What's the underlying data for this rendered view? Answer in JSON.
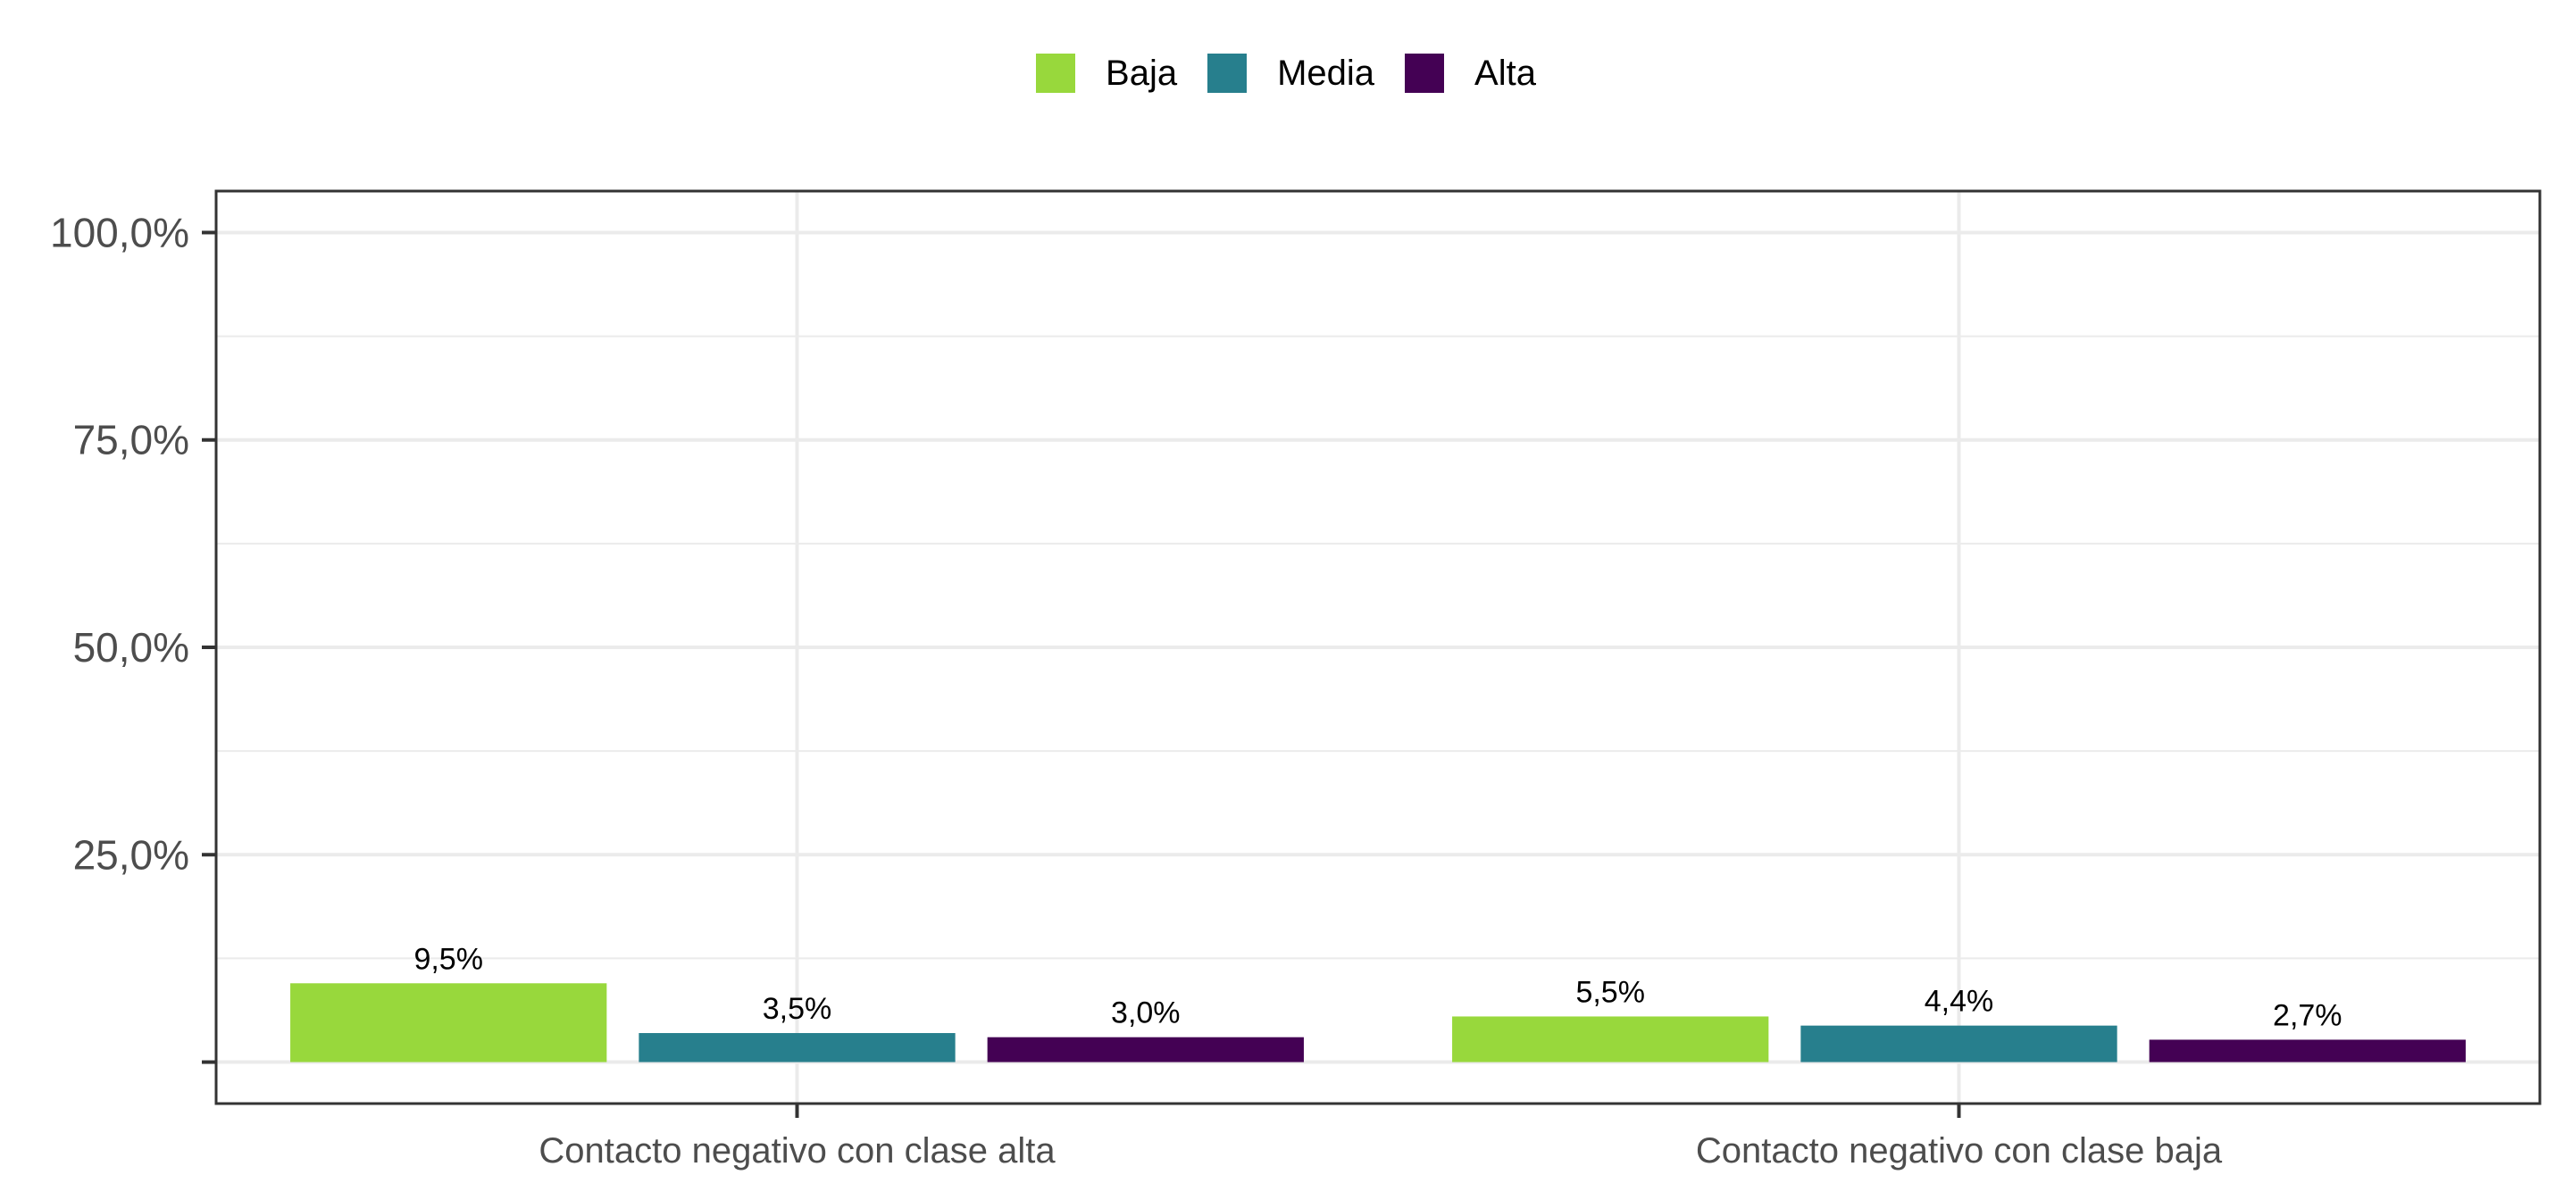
{
  "legend": {
    "position": "top",
    "items": [
      {
        "label": "Baja",
        "color": "#98d83c"
      },
      {
        "label": "Media",
        "color": "#277f8d"
      },
      {
        "label": "Alta",
        "color": "#440154"
      }
    ]
  },
  "chart_data": {
    "type": "bar",
    "orientation": "vertical",
    "grouped": true,
    "title": "",
    "xlabel": "",
    "ylabel": "",
    "categories": [
      "Contacto negativo con clase alta",
      "Contacto negativo con clase baja"
    ],
    "series": [
      {
        "name": "Baja",
        "color": "#98d83c",
        "values": [
          9.5,
          5.5
        ],
        "labels": [
          "9,5%",
          "5,5%"
        ]
      },
      {
        "name": "Media",
        "color": "#277f8d",
        "values": [
          3.5,
          4.4
        ],
        "labels": [
          "3,5%",
          "4,4%"
        ]
      },
      {
        "name": "Alta",
        "color": "#440154",
        "values": [
          3.0,
          2.7
        ],
        "labels": [
          "3,0%",
          "2,7%"
        ]
      }
    ],
    "ylim": [
      -5,
      105
    ],
    "y_ticks": [
      {
        "value": 0,
        "label": ""
      },
      {
        "value": 25,
        "label": "25,0%"
      },
      {
        "value": 50,
        "label": "50,0%"
      },
      {
        "value": 75,
        "label": "75,0%"
      },
      {
        "value": 100,
        "label": "100,0%"
      }
    ],
    "y_minor_grid": [
      12.5,
      37.5,
      62.5,
      87.5
    ],
    "grid": true,
    "panel_border": true,
    "grid_color": "#ebebeb",
    "axis_text_color": "#4d4d4d",
    "tick_color": "#333333"
  }
}
